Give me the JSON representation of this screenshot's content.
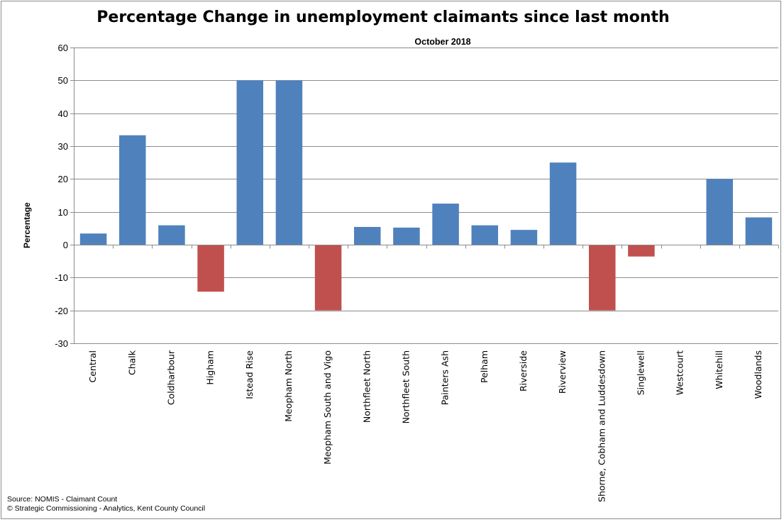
{
  "chart_data": {
    "type": "bar",
    "title": "Percentage Change in unemployment claimants since last month",
    "subtitle": "October 2018",
    "xlabel": "",
    "ylabel": "Percentage",
    "ylim": [
      -30,
      60
    ],
    "yticks": [
      60,
      50,
      40,
      30,
      20,
      10,
      0,
      -10,
      -20,
      -30
    ],
    "grid": true,
    "positive_color": "#4f81bd",
    "negative_color": "#c0504d",
    "categories": [
      "Central",
      "Chalk",
      "Coldharbour",
      "Higham",
      "Istead Rise",
      "Meopham North",
      "Meopham South and Vigo",
      "Northfleet North",
      "Northfleet South",
      "Painters Ash",
      "Pelham",
      "Riverside",
      "Riverview",
      "Shorne, Cobham and Luddesdown",
      "Singlewell",
      "Westcourt",
      "Whitehill",
      "Woodlands"
    ],
    "values": [
      3.4,
      33.3,
      5.9,
      -14.3,
      50,
      50,
      -20,
      5.4,
      5.2,
      12.5,
      5.9,
      4.5,
      25,
      -20,
      -3.6,
      0,
      20,
      8.3
    ]
  },
  "footer": {
    "source": "Source: NOMIS - Claimant Count",
    "copyright": "© Strategic Commissioning - Analytics, Kent County Council"
  }
}
